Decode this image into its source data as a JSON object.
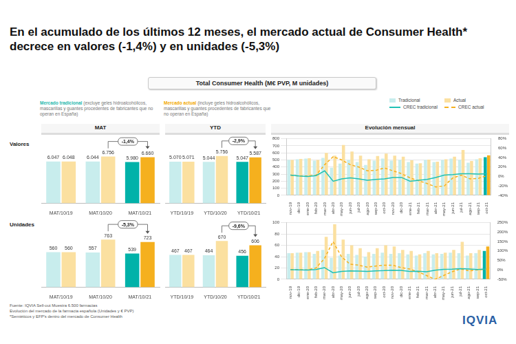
{
  "title": "En el acumulado de los últimos 12 meses, el mercado actual de Consumer Health* decrece en valores (-1,4%) y en unidades (-5,3%)",
  "section_title": "Total Consumer Health (M€ PVP, M unidades)",
  "market_notes": [
    {
      "label": "Mercado tradicional",
      "text": "(excluye geles hidroalcohólicos, mascarillas y guantes procedentes de fabricantes que no operan en España)",
      "color": "#1fb8ad"
    },
    {
      "label": "Mercado actual",
      "text": "(incluye geles hidroalcohólicos, mascarillas y guantes procedentes de fabricantes que no operan en España)",
      "color": "#f2a900"
    }
  ],
  "row_labels": [
    "Valores",
    "Unidades"
  ],
  "footer": [
    "Fuente: IQVIA Sell-out Muestra 6.500 farmacias",
    "Evolución del mercado de la farmacia española (Unidades y € PVP)",
    "*Semiéticos y EFP's dentro del mercado de Consumer Health"
  ],
  "logo": "IQVIA",
  "chart_data": [
    {
      "type": "bar",
      "title": "MAT",
      "categories": [
        "MAT/10/19",
        "MAT/10/20",
        "MAT/10/21"
      ],
      "ylim": [
        0,
        9500
      ],
      "tick_labels": "x",
      "grid": false,
      "data_labels": true,
      "annotation": "-1,4%",
      "series": [
        {
          "colors": [
            "#c8eded",
            "#c8eded",
            "#00b2a9"
          ],
          "values": [
            6047,
            6044,
            5980
          ],
          "value_labels": [
            "6.047",
            "6.044",
            "5.980"
          ]
        },
        {
          "colors": [
            "#fbe0a0",
            "#fbe0a0",
            "#f5b01e"
          ],
          "values": [
            6048,
            6756,
            6660
          ],
          "value_labels": [
            "6.048",
            "6.756",
            "6.660"
          ]
        }
      ]
    },
    {
      "type": "bar",
      "title": "YTD",
      "categories": [
        "YTD/10/19",
        "YTD/10/20",
        "YTD/10/21"
      ],
      "ylim": [
        0,
        8000
      ],
      "tick_labels": "x",
      "grid": false,
      "data_labels": true,
      "annotation": "-2,9%",
      "series": [
        {
          "colors": [
            "#c8eded",
            "#c8eded",
            "#00b2a9"
          ],
          "values": [
            5070,
            5044,
            5047
          ],
          "value_labels": [
            "5.070",
            "5.044",
            "5.047"
          ]
        },
        {
          "colors": [
            "#fbe0a0",
            "#fbe0a0",
            "#f5b01e"
          ],
          "values": [
            5071,
            5756,
            5587
          ],
          "value_labels": [
            "5.071",
            "5.756",
            "5.587"
          ]
        }
      ]
    },
    {
      "type": "bar",
      "title": "Evolución mensual",
      "categories": [
        "nov-19",
        "dic-19",
        "ene-20",
        "feb-20",
        "mar-20",
        "abr-20",
        "may-20",
        "jun-20",
        "jul-20",
        "ago-20",
        "sep-20",
        "oct-20",
        "nov-20",
        "dic-20",
        "ene-21",
        "feb-21",
        "mar-21",
        "abr-21",
        "may-21",
        "jun-21",
        "jul-21",
        "ago-21",
        "sep-21",
        "oct-21"
      ],
      "ylim": [
        0,
        800
      ],
      "yticks": [
        0,
        100,
        200,
        300,
        400,
        500,
        600,
        700,
        800
      ],
      "y2lim": [
        -40,
        80
      ],
      "y2ticks": [
        {
          "value": -40,
          "label": "-40%"
        },
        {
          "value": -20,
          "label": "-20%"
        },
        {
          "value": 0,
          "label": "0%"
        },
        {
          "value": 20,
          "label": "20%"
        },
        {
          "value": 40,
          "label": "40%"
        },
        {
          "value": 60,
          "label": "60%"
        },
        {
          "value": 80,
          "label": "80%"
        }
      ],
      "grid": true,
      "legend": "top right",
      "series": [
        {
          "name": "Tradicional",
          "colors": [
            "#c8eded",
            "#c8eded",
            "#c8eded",
            "#c8eded",
            "#c8eded",
            "#c8eded",
            "#c8eded",
            "#c8eded",
            "#c8eded",
            "#c8eded",
            "#c8eded",
            "#c8eded",
            "#c8eded",
            "#c8eded",
            "#c8eded",
            "#c8eded",
            "#c8eded",
            "#c8eded",
            "#c8eded",
            "#c8eded",
            "#c8eded",
            "#c8eded",
            "#c8eded",
            "#00b2a9"
          ],
          "values": [
            500,
            510,
            520,
            490,
            530,
            390,
            450,
            500,
            470,
            430,
            490,
            520,
            490,
            500,
            470,
            450,
            500,
            470,
            500,
            520,
            500,
            460,
            510,
            540
          ]
        },
        {
          "name": "Actual",
          "colors": [
            "#fbe0a0",
            "#fbe0a0",
            "#fbe0a0",
            "#fbe0a0",
            "#fbe0a0",
            "#fbe0a0",
            "#fbe0a0",
            "#fbe0a0",
            "#fbe0a0",
            "#fbe0a0",
            "#fbe0a0",
            "#fbe0a0",
            "#fbe0a0",
            "#fbe0a0",
            "#fbe0a0",
            "#fbe0a0",
            "#fbe0a0",
            "#fbe0a0",
            "#fbe0a0",
            "#fbe0a0",
            "#fbe0a0",
            "#fbe0a0",
            "#fbe0a0",
            "#f5b01e"
          ],
          "values": [
            500,
            515,
            525,
            500,
            600,
            560,
            710,
            620,
            560,
            510,
            555,
            590,
            560,
            545,
            495,
            455,
            505,
            475,
            510,
            545,
            640,
            485,
            525,
            565
          ]
        },
        {
          "name": "CREC tradicional",
          "type": "line",
          "color": "#1fc1b5",
          "line_style": "solid",
          "axis": "y2",
          "values": [
            3,
            1,
            0,
            2,
            12,
            -10,
            -5,
            -3,
            -5,
            -8,
            -6,
            -5,
            -2,
            -2,
            -10,
            -8,
            -6,
            -2,
            3,
            4,
            6,
            6,
            5,
            6
          ]
        },
        {
          "name": "CREC actual",
          "type": "line",
          "color": "#f5b01e",
          "line_style": "dashed",
          "axis": "y2",
          "values": [
            3,
            1,
            1,
            3,
            25,
            42,
            35,
            25,
            20,
            12,
            13,
            18,
            12,
            6,
            -3,
            -9,
            -15,
            -22,
            -20,
            -3,
            3,
            -5,
            -4,
            2
          ]
        }
      ]
    },
    {
      "type": "bar",
      "categories": [
        "MAT/10/19",
        "MAT/10/20",
        "MAT/10/21"
      ],
      "ylim": [
        0,
        1050
      ],
      "tick_labels": "x",
      "grid": false,
      "data_labels": true,
      "annotation": "-5,3%",
      "series": [
        {
          "colors": [
            "#c8eded",
            "#c8eded",
            "#00b2a9"
          ],
          "values": [
            560,
            557,
            539
          ]
        },
        {
          "colors": [
            "#fbe0a0",
            "#fbe0a0",
            "#f5b01e"
          ],
          "values": [
            560,
            763,
            723
          ]
        }
      ]
    },
    {
      "type": "bar",
      "categories": [
        "YTD/10/19",
        "YTD/10/20",
        "YTD/10/21"
      ],
      "ylim": [
        0,
        950
      ],
      "tick_labels": "x",
      "grid": false,
      "data_labels": true,
      "annotation": "-9,6%",
      "series": [
        {
          "colors": [
            "#c8eded",
            "#c8eded",
            "#00b2a9"
          ],
          "values": [
            467,
            464,
            456
          ]
        },
        {
          "colors": [
            "#fbe0a0",
            "#fbe0a0",
            "#f5b01e"
          ],
          "values": [
            467,
            670,
            606
          ]
        }
      ]
    },
    {
      "type": "bar",
      "categories": [
        "nov-19",
        "dic-19",
        "ene-20",
        "feb-20",
        "mar-20",
        "abr-20",
        "may-20",
        "jun-20",
        "jul-20",
        "ago-20",
        "sep-20",
        "oct-20",
        "nov-20",
        "dic-20",
        "ene-21",
        "feb-21",
        "mar-21",
        "abr-21",
        "may-21",
        "jun-21",
        "jul-21",
        "ago-21",
        "sep-21",
        "oct-21"
      ],
      "ylim": [
        0,
        100
      ],
      "yticks": [
        0,
        20,
        40,
        60,
        80,
        100
      ],
      "y2lim": [
        -50,
        250
      ],
      "y2ticks": [
        {
          "value": -50,
          "label": "-50%"
        },
        {
          "value": 0,
          "label": "0%"
        },
        {
          "value": 50,
          "label": "50%"
        },
        {
          "value": 100,
          "label": "100%"
        },
        {
          "value": 150,
          "label": "150%"
        },
        {
          "value": 200,
          "label": "200%"
        },
        {
          "value": 250,
          "label": "250%"
        }
      ],
      "grid": true,
      "series": [
        {
          "name": "Tradicional",
          "colors": [
            "#c8eded",
            "#c8eded",
            "#c8eded",
            "#c8eded",
            "#c8eded",
            "#c8eded",
            "#c8eded",
            "#c8eded",
            "#c8eded",
            "#c8eded",
            "#c8eded",
            "#c8eded",
            "#c8eded",
            "#c8eded",
            "#c8eded",
            "#c8eded",
            "#c8eded",
            "#c8eded",
            "#c8eded",
            "#c8eded",
            "#c8eded",
            "#c8eded",
            "#c8eded",
            "#00b2a9"
          ],
          "values": [
            46,
            47,
            48,
            45,
            52,
            38,
            42,
            45,
            43,
            40,
            45,
            47,
            45,
            46,
            44,
            42,
            46,
            44,
            45,
            47,
            46,
            42,
            46,
            50
          ]
        },
        {
          "name": "Actual",
          "colors": [
            "#fbe0a0",
            "#fbe0a0",
            "#fbe0a0",
            "#fbe0a0",
            "#fbe0a0",
            "#fbe0a0",
            "#fbe0a0",
            "#fbe0a0",
            "#fbe0a0",
            "#fbe0a0",
            "#fbe0a0",
            "#fbe0a0",
            "#fbe0a0",
            "#fbe0a0",
            "#fbe0a0",
            "#fbe0a0",
            "#fbe0a0",
            "#fbe0a0",
            "#fbe0a0",
            "#fbe0a0",
            "#fbe0a0",
            "#fbe0a0",
            "#fbe0a0",
            "#f5b01e"
          ],
          "values": [
            46,
            47,
            48,
            50,
            75,
            97,
            70,
            60,
            55,
            48,
            55,
            60,
            58,
            52,
            50,
            44,
            50,
            46,
            47,
            52,
            66,
            46,
            52,
            58
          ]
        },
        {
          "name": "CREC tradicional",
          "type": "line",
          "color": "#1fc1b5",
          "line_style": "solid",
          "axis": "y2",
          "values": [
            1,
            0,
            -1,
            2,
            12,
            -15,
            -8,
            -5,
            -6,
            -8,
            -5,
            -4,
            -2,
            -3,
            -8,
            -7,
            -10,
            -2,
            3,
            4,
            6,
            5,
            2,
            5
          ]
        },
        {
          "name": "CREC actual",
          "type": "line",
          "color": "#f5b01e",
          "line_style": "dashed",
          "axis": "y2",
          "values": [
            2,
            1,
            0,
            10,
            60,
            150,
            70,
            30,
            25,
            15,
            20,
            25,
            25,
            12,
            5,
            -10,
            -30,
            -50,
            -30,
            -10,
            5,
            -5,
            0,
            3
          ]
        }
      ]
    }
  ]
}
